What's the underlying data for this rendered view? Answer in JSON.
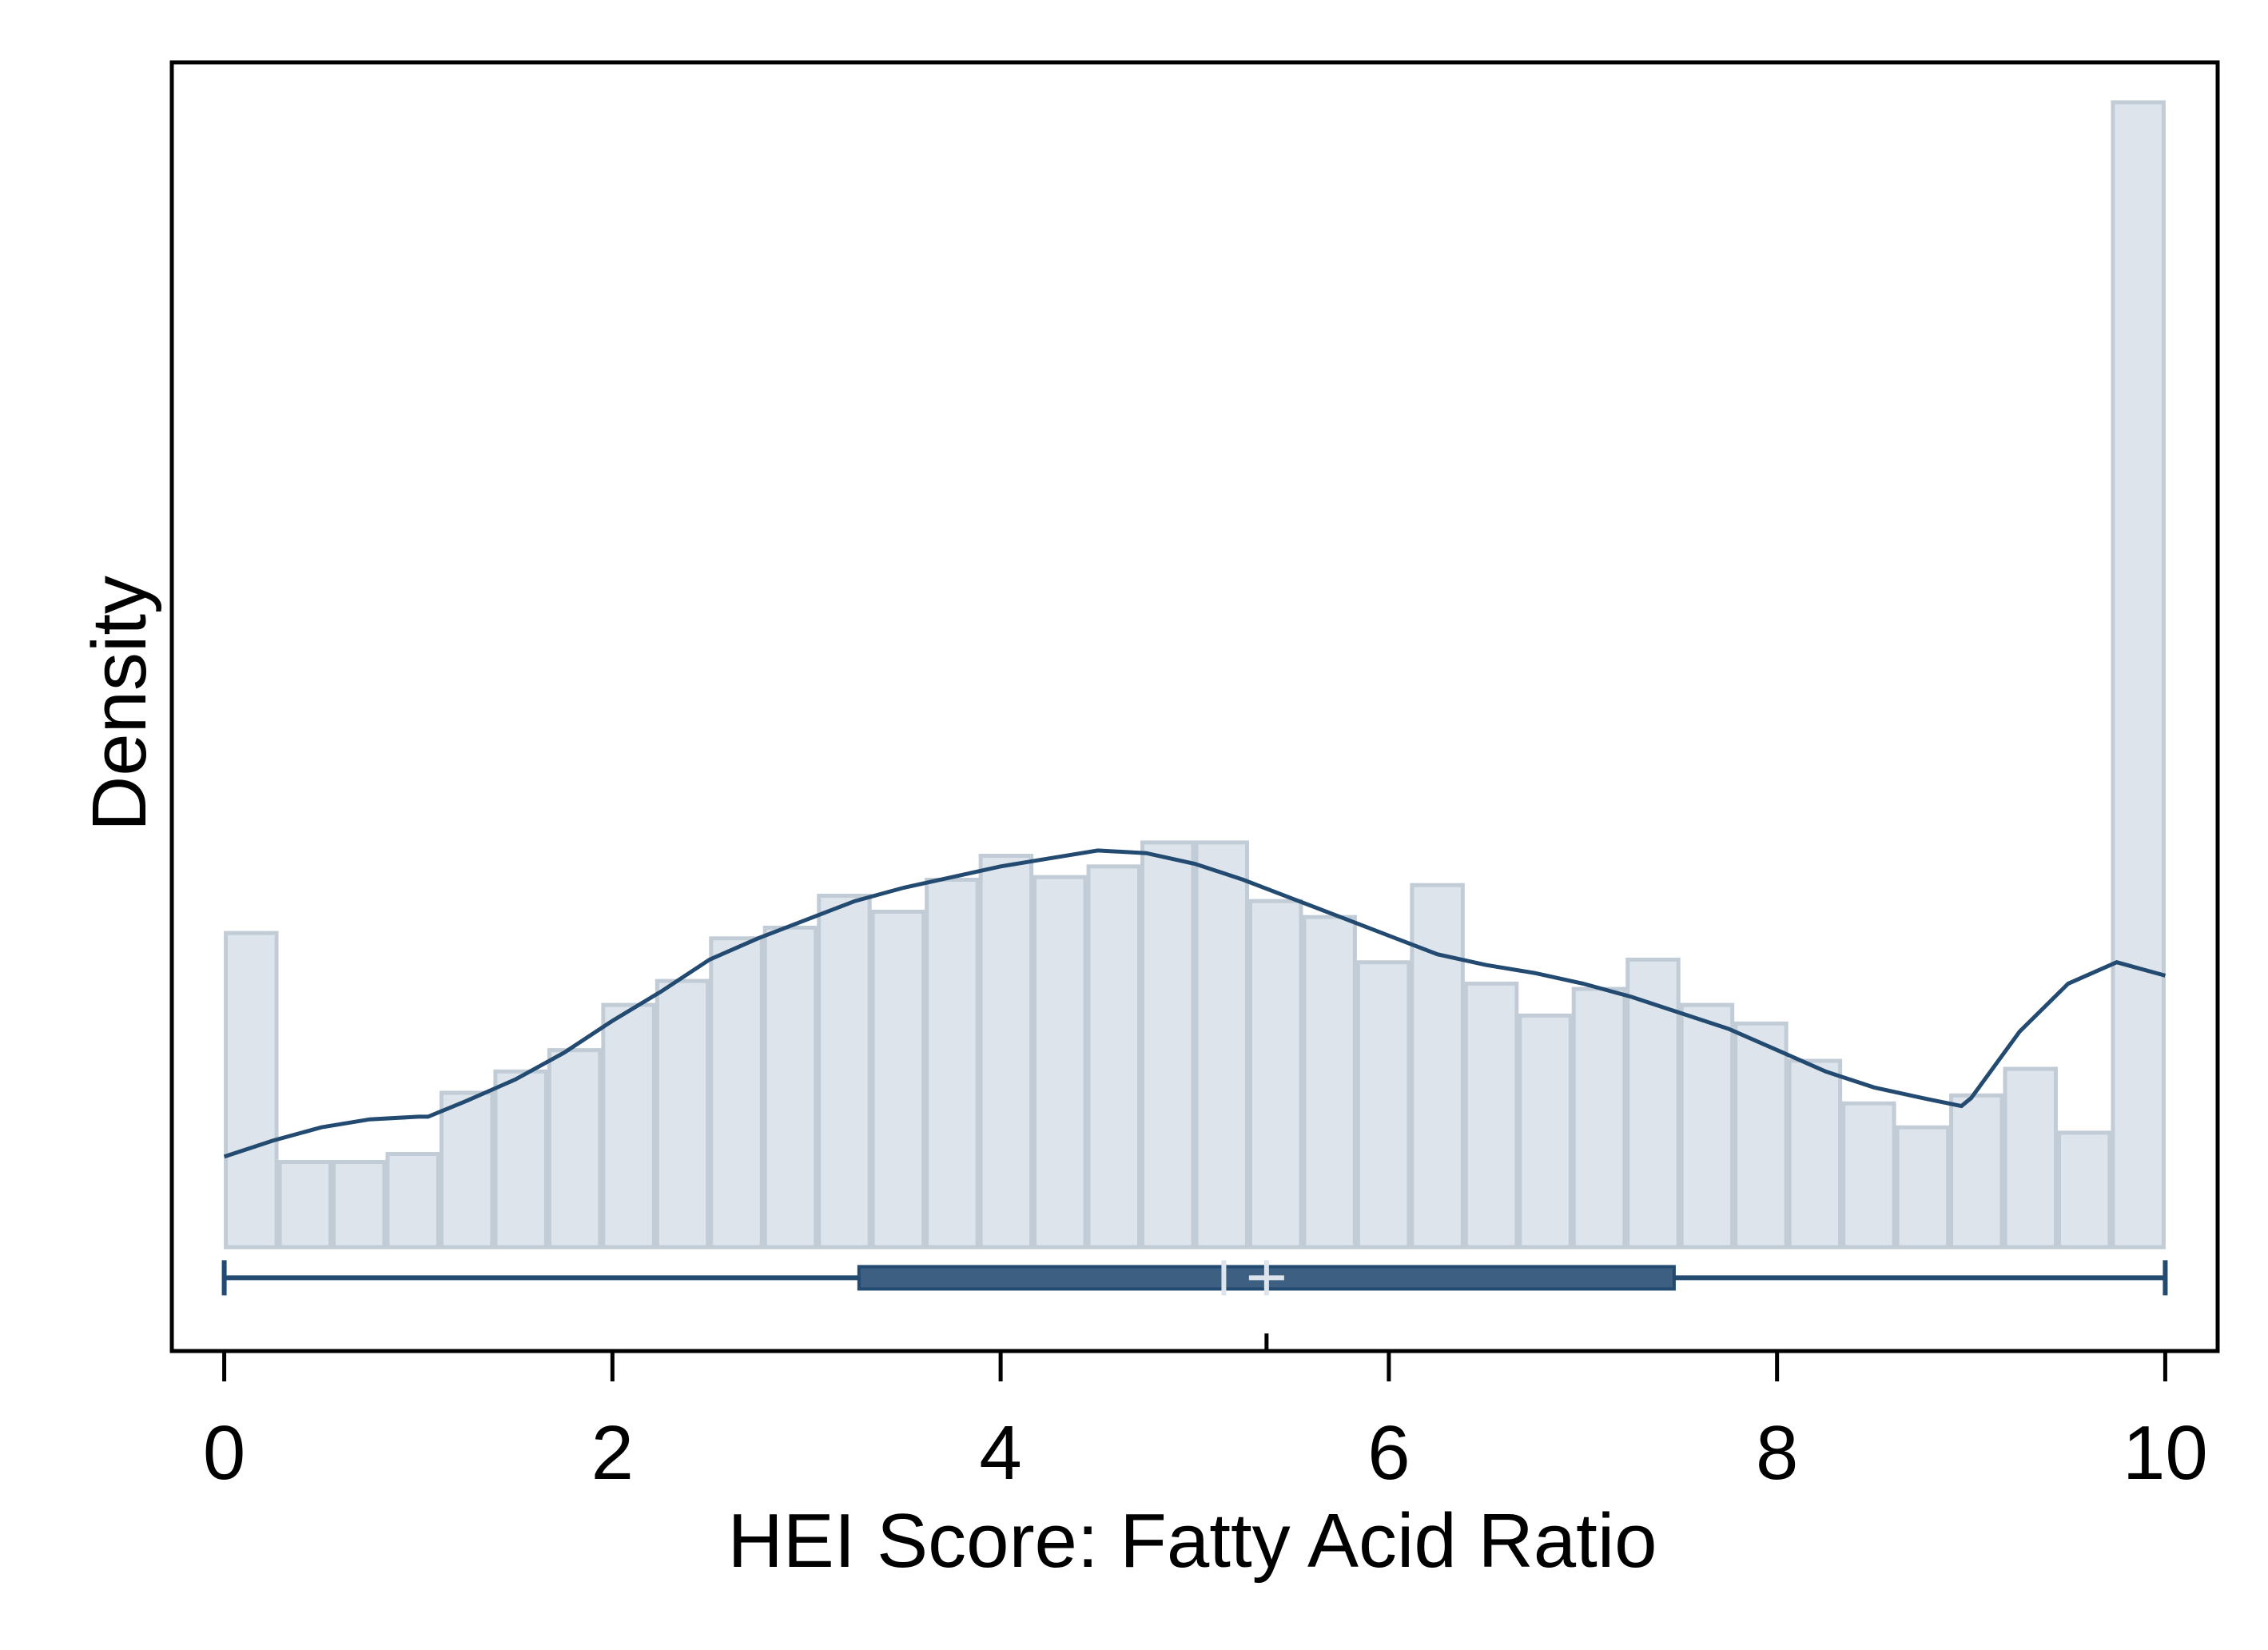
{
  "chart_data": {
    "type": "histogram",
    "title": "",
    "xlabel": "HEI Score: Fatty Acid Ratio",
    "ylabel": "Density",
    "xlim": [
      -0.27,
      10.27
    ],
    "ylim": [
      -0.039,
      0.445
    ],
    "xticks": [
      0,
      2,
      4,
      6,
      8,
      10
    ],
    "yticks_shown": false,
    "grid": false,
    "legend": "none",
    "colors": {
      "bar_fill": "#dde4eb",
      "bar_stroke": "#c2ccd6",
      "curve": "#234a70",
      "box": "#3d5f82",
      "frame": "#000000"
    },
    "histogram": {
      "bin_edges": [
        0,
        0.2778,
        0.5556,
        0.8333,
        1.1111,
        1.3889,
        1.6667,
        1.9444,
        2.2222,
        2.5,
        2.7778,
        3.0556,
        3.3333,
        3.6111,
        3.8889,
        4.1667,
        4.4444,
        4.7222,
        5.0,
        5.2778,
        5.5556,
        5.8333,
        6.1111,
        6.3889,
        6.6667,
        6.9444,
        7.2222,
        7.5,
        7.7778,
        8.0556,
        8.3333,
        8.6111,
        8.8889,
        9.1667,
        9.4444,
        9.7222,
        10.0
      ],
      "density": [
        0.118,
        0.032,
        0.032,
        0.035,
        0.058,
        0.066,
        0.074,
        0.091,
        0.1,
        0.116,
        0.12,
        0.132,
        0.126,
        0.138,
        0.147,
        0.139,
        0.143,
        0.152,
        0.152,
        0.13,
        0.124,
        0.107,
        0.136,
        0.099,
        0.087,
        0.097,
        0.108,
        0.091,
        0.084,
        0.07,
        0.054,
        0.045,
        0.057,
        0.067,
        0.043,
        0.43
      ]
    },
    "density_curve": {
      "x": [
        0,
        0.25,
        0.5,
        0.75,
        1.0,
        1.05,
        1.25,
        1.5,
        1.75,
        2.0,
        2.25,
        2.5,
        2.75,
        3.0,
        3.25,
        3.5,
        3.75,
        4.0,
        4.25,
        4.5,
        4.75,
        5.0,
        5.25,
        5.5,
        5.75,
        6.0,
        6.25,
        6.5,
        6.75,
        7.0,
        7.25,
        7.5,
        7.75,
        8.0,
        8.25,
        8.5,
        8.75,
        8.95,
        9.0,
        9.25,
        9.5,
        9.75,
        10.0
      ],
      "y": [
        0.034,
        0.04,
        0.045,
        0.048,
        0.049,
        0.049,
        0.055,
        0.063,
        0.073,
        0.085,
        0.096,
        0.108,
        0.116,
        0.123,
        0.13,
        0.135,
        0.139,
        0.143,
        0.146,
        0.149,
        0.148,
        0.144,
        0.138,
        0.131,
        0.124,
        0.117,
        0.11,
        0.106,
        0.103,
        0.099,
        0.094,
        0.088,
        0.082,
        0.074,
        0.066,
        0.06,
        0.056,
        0.053,
        0.056,
        0.081,
        0.099,
        0.107,
        0.102
      ]
    },
    "boxplot": {
      "min": 0,
      "q1": 3.27,
      "median": 5.15,
      "mean": 5.37,
      "q3": 7.47,
      "max": 10
    }
  }
}
